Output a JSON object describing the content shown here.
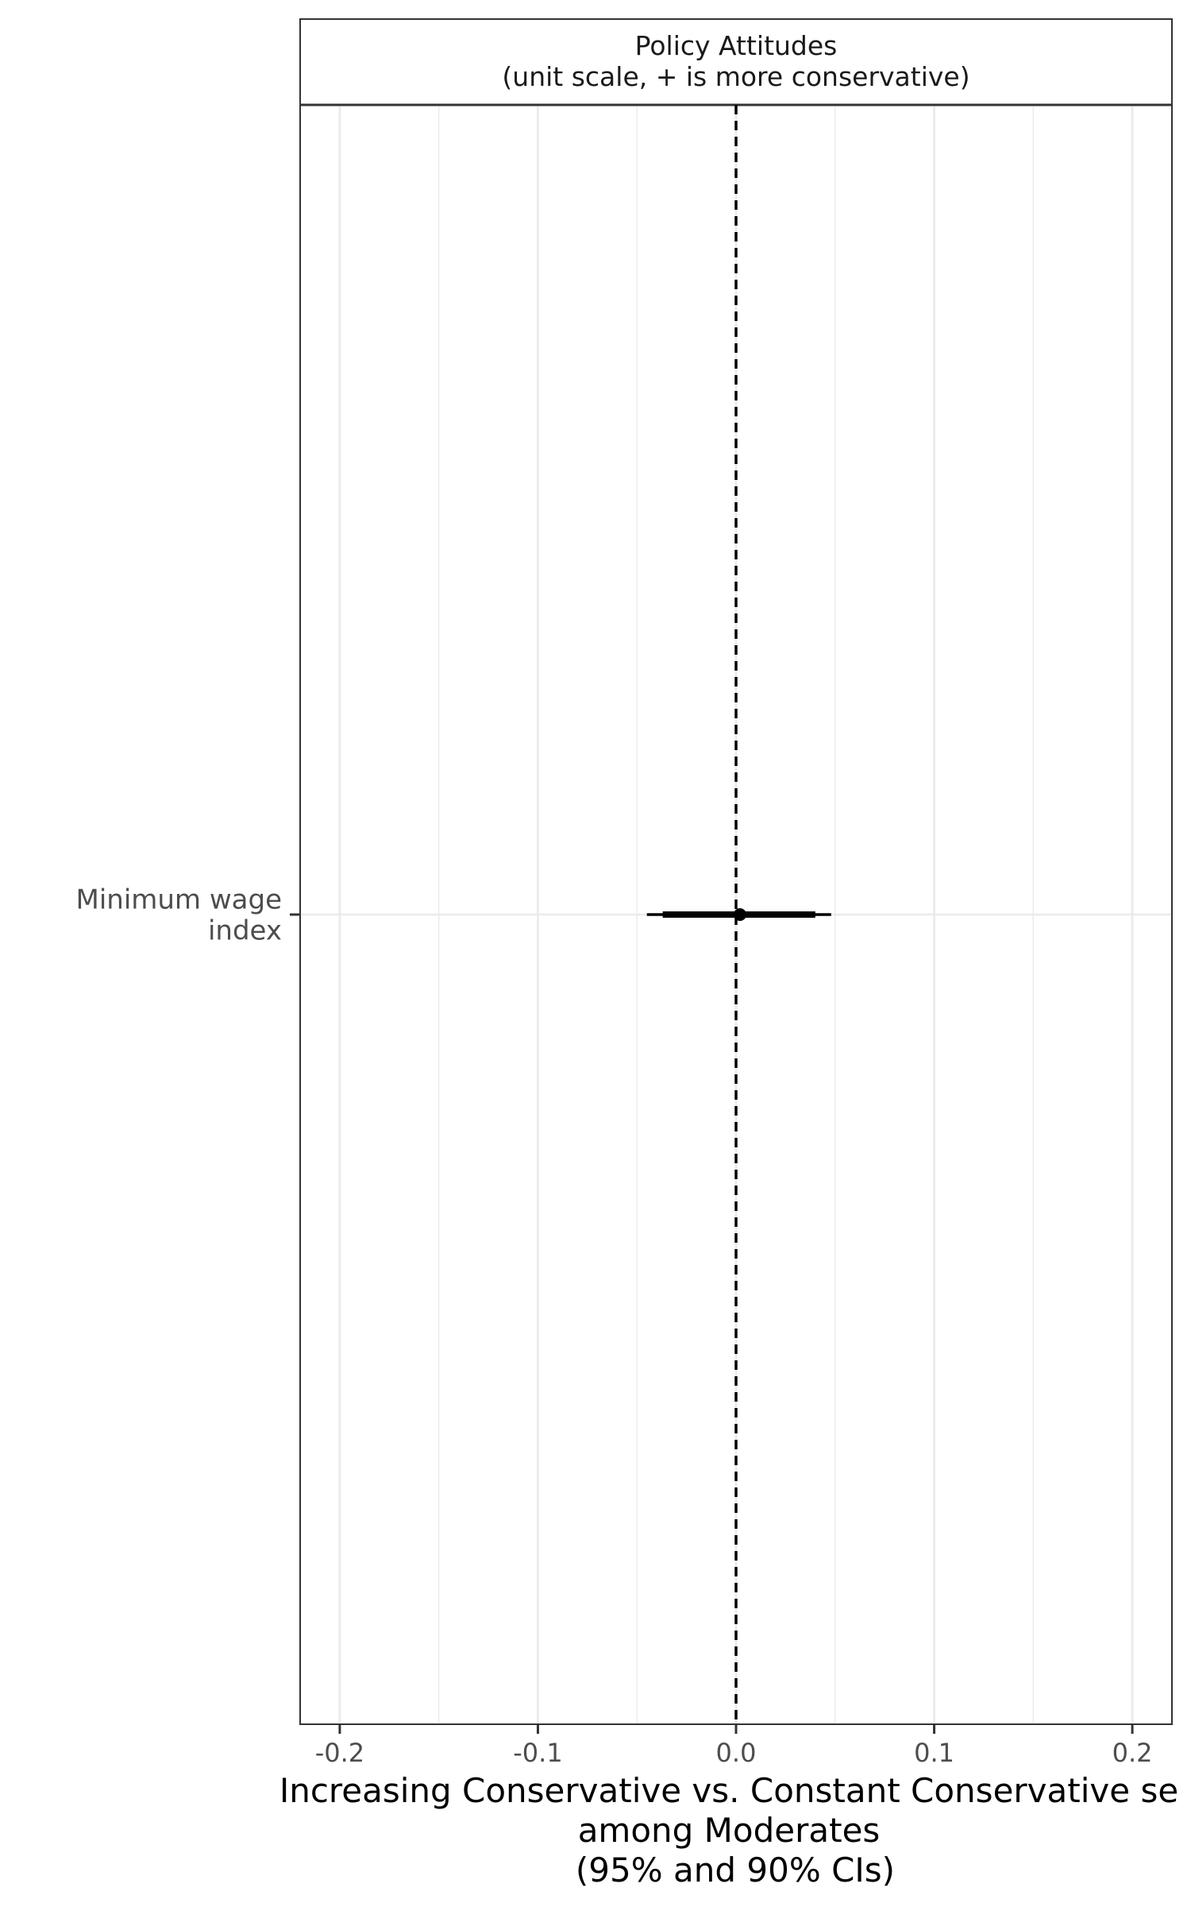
{
  "chart_data": {
    "type": "scatter",
    "title": "",
    "facet_label": [
      "Policy Attitudes",
      "(unit scale, + is more conservative)"
    ],
    "xlabel": [
      "Increasing Conservative vs. Constant Conservative se",
      "among Moderates",
      "(95% and 90% CIs)"
    ],
    "ylabel": "",
    "xlim": [
      -0.22,
      0.22
    ],
    "x_ticks": [
      -0.2,
      -0.1,
      0.0,
      0.1,
      0.2
    ],
    "x_tick_labels": [
      "-0.2",
      "-0.1",
      "0.0",
      "0.1",
      "0.2"
    ],
    "reference_line_x": 0.0,
    "categories": [
      [
        "Minimum wage",
        "index"
      ]
    ],
    "series": [
      {
        "points": [
          {
            "estimate": 0.002,
            "ci95": [
              -0.045,
              0.048
            ],
            "ci90": [
              -0.037,
              0.04
            ]
          }
        ]
      }
    ],
    "grid": true,
    "legend": "none",
    "colors": {
      "points": "#000000",
      "grid": "#ebebeb",
      "axis_text": "#4d4d4d"
    }
  }
}
